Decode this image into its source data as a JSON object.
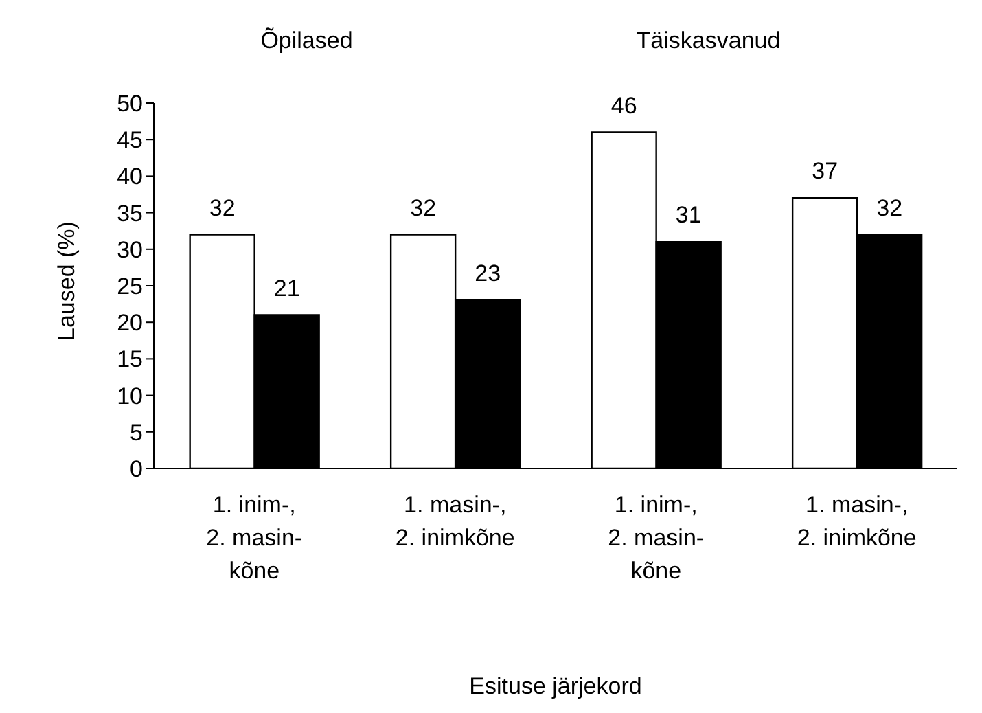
{
  "chart_data": {
    "type": "bar",
    "xlabel": "Esituse järjekord",
    "ylabel": "Laused (%)",
    "categories": [
      "1. inim-,\n2. masin-\nkõne",
      "1. masin-,\n2. inimkõne",
      "1. inim-,\n2. masin-\nkõne",
      "1. masin-,\n2. inimkõne"
    ],
    "series": [
      {
        "color": "#ffffff",
        "values": [
          32,
          32,
          46,
          37
        ]
      },
      {
        "color": "#000000",
        "values": [
          21,
          23,
          31,
          32
        ]
      }
    ],
    "ylim": [
      0,
      50
    ],
    "yticks": [
      0,
      5,
      10,
      15,
      20,
      25,
      30,
      35,
      40,
      45,
      50
    ],
    "annotations": [
      "Õpilased",
      "Täiskasvanud"
    ],
    "data_labels": true,
    "grid": false,
    "legend": false
  }
}
